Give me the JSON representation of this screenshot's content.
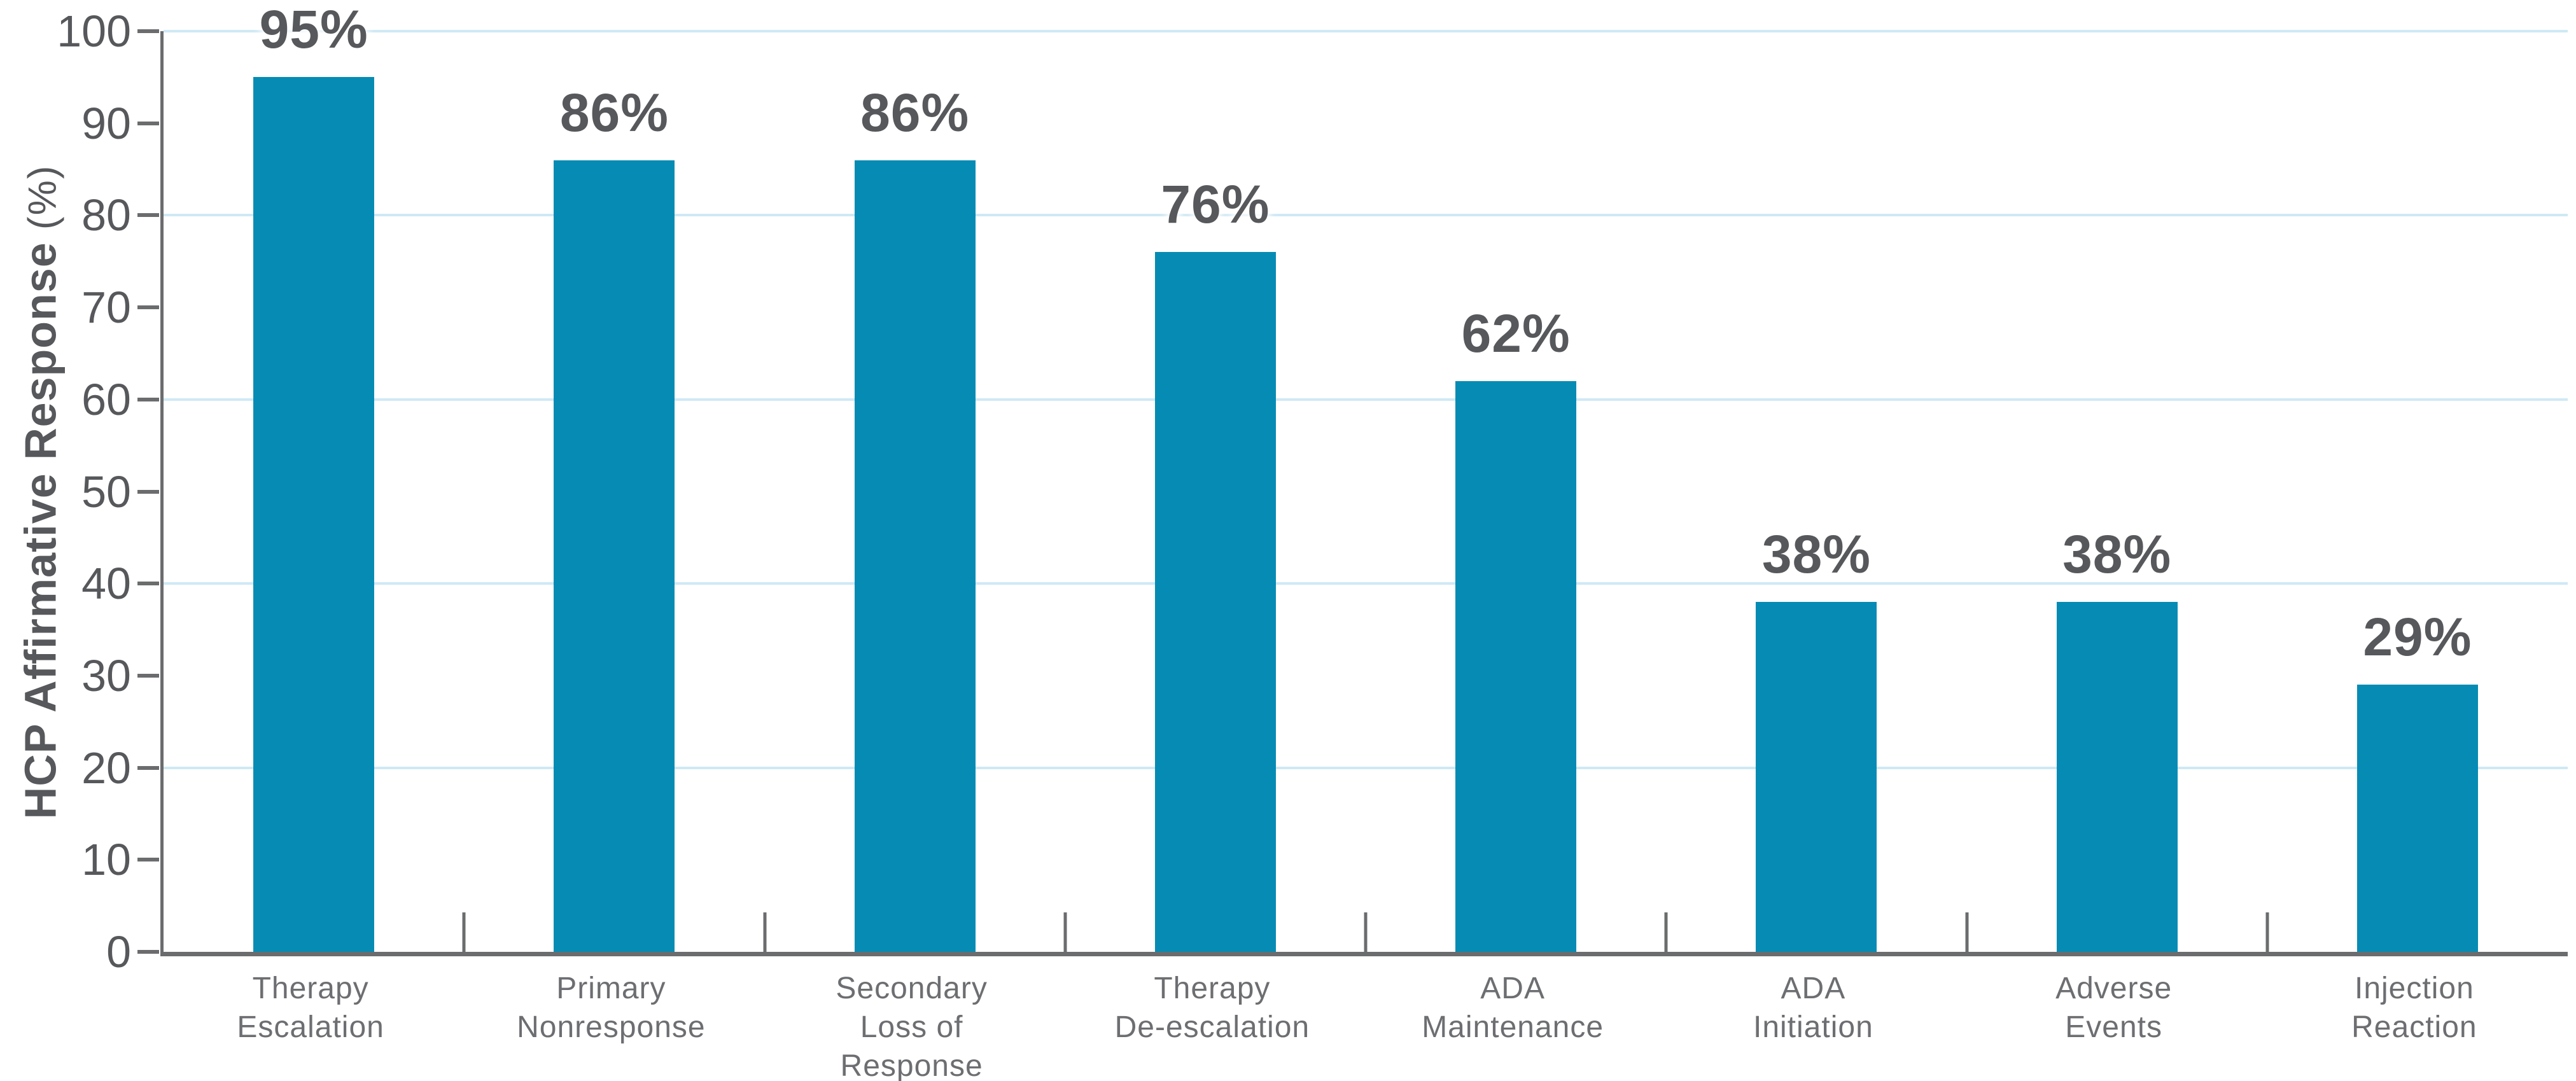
{
  "chart_data": {
    "type": "bar",
    "title": "",
    "ylabel": "HCP Affirmative Response",
    "ylabel_unit": "(%)",
    "categories": [
      "Therapy\nEscalation",
      "Primary\nNonresponse",
      "Secondary\nLoss of\nResponse",
      "Therapy\nDe-escalation",
      "ADA\nMaintenance",
      "ADA\nInitiation",
      "Adverse\nEvents",
      "Injection\nReaction"
    ],
    "values": [
      95,
      86,
      86,
      76,
      62,
      38,
      38,
      29
    ],
    "data_labels": [
      "95%",
      "86%",
      "86%",
      "76%",
      "62%",
      "38%",
      "38%",
      "29%"
    ],
    "y_ticks": [
      "0",
      "10",
      "20",
      "30",
      "40",
      "50",
      "60",
      "70",
      "80",
      "90",
      "100"
    ],
    "gridlines_at": [
      20,
      40,
      60,
      80,
      100
    ],
    "ylim": [
      0,
      100
    ],
    "grid": true,
    "legend": "none",
    "colors": {
      "bar": "#068CB4",
      "gridline": "#CFE9F5",
      "axis": "#6B6C6E",
      "tick_label": "#57585B",
      "data_label": "#57585B",
      "category_label": "#6D6E71"
    }
  }
}
